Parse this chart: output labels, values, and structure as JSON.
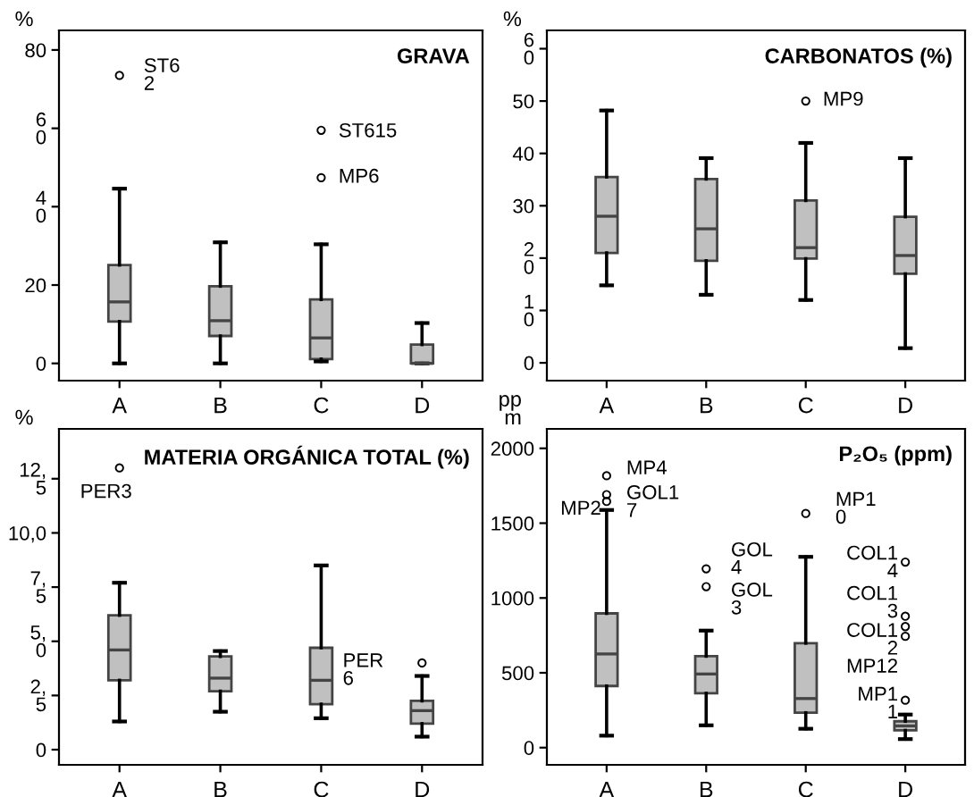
{
  "chart_data": [
    {
      "type": "box",
      "title": "GRAVA",
      "ylabel": "%",
      "categories": [
        "A",
        "B",
        "C",
        "D"
      ],
      "color": "#c0c0c0",
      "ylim": [
        -4.4,
        85
      ],
      "yticks": [
        {
          "value": 0,
          "label": "0"
        },
        {
          "value": 20,
          "label": "20"
        },
        {
          "value": 40,
          "label": "4\n0"
        },
        {
          "value": 60,
          "label": "6\n0"
        },
        {
          "value": 80,
          "label": "80"
        }
      ],
      "grid": false,
      "legend": false,
      "boxes": [
        {
          "low": 0,
          "q1": 10.7,
          "median": 15.7,
          "q3": 25.1,
          "high": 44.6,
          "outliers": [
            73.5
          ]
        },
        {
          "low": 0,
          "q1": 7.0,
          "median": 10.9,
          "q3": 19.7,
          "high": 30.9
        },
        {
          "low": 0.5,
          "q1": 1.1,
          "median": 6.5,
          "q3": 16.3,
          "high": 30.4,
          "outliers": [
            59.5,
            47.4
          ]
        },
        {
          "low": 0,
          "q1": 0,
          "median": 0,
          "q3": 4.8,
          "high": 10.3
        }
      ],
      "annotations": [
        "ST6\n2",
        "ST615",
        "MP6"
      ]
    },
    {
      "type": "box",
      "title": "CARBONATOS (%)",
      "ylabel": "%",
      "categories": [
        "A",
        "B",
        "C",
        "D"
      ],
      "color": "#c0c0c0",
      "ylim": [
        -3.4,
        63.5
      ],
      "yticks": [
        {
          "value": 0,
          "label": "0"
        },
        {
          "value": 10,
          "label": "1\n0"
        },
        {
          "value": 20,
          "label": "2\n0"
        },
        30,
        40,
        50,
        {
          "value": 60,
          "label": "6\n0"
        }
      ],
      "grid": false,
      "legend": false,
      "boxes": [
        {
          "low": 14.8,
          "q1": 21.0,
          "median": 28.0,
          "q3": 35.5,
          "high": 48.2
        },
        {
          "low": 13.0,
          "q1": 19.5,
          "median": 25.6,
          "q3": 35.1,
          "high": 39.1
        },
        {
          "low": 12.0,
          "q1": 19.9,
          "median": 22.0,
          "q3": 31.0,
          "high": 42.0,
          "outliers": [
            50.0
          ]
        },
        {
          "low": 2.8,
          "q1": 17.0,
          "median": 20.5,
          "q3": 27.9,
          "high": 39.1
        }
      ],
      "annotations": [
        "MP9"
      ]
    },
    {
      "type": "box",
      "title": "MATERIA ORGÁNICA TOTAL (%)",
      "ylabel": "%",
      "categories": [
        "A",
        "B",
        "C",
        "D"
      ],
      "color": "#c0c0c0",
      "ylim": [
        -0.7,
        14.8
      ],
      "yticks": [
        {
          "value": 0,
          "label": "0"
        },
        {
          "value": 2.5,
          "label": "2,\n5"
        },
        {
          "value": 5,
          "label": "5,\n0"
        },
        {
          "value": 7.5,
          "label": "7,\n5"
        },
        {
          "value": 10,
          "label": "10,0"
        },
        {
          "value": 12.5,
          "label": "12,\n5"
        }
      ],
      "grid": false,
      "legend": false,
      "boxes": [
        {
          "low": 1.3,
          "q1": 3.2,
          "median": 4.6,
          "q3": 6.2,
          "high": 7.7,
          "outliers": [
            13.0
          ]
        },
        {
          "low": 1.75,
          "q1": 2.7,
          "median": 3.3,
          "q3": 4.3,
          "high": 4.55
        },
        {
          "low": 1.45,
          "q1": 2.1,
          "median": 3.2,
          "q3": 4.7,
          "high": 8.5
        },
        {
          "low": 0.6,
          "q1": 1.2,
          "median": 1.8,
          "q3": 2.25,
          "high": 3.4,
          "outliers": [
            4.0
          ]
        }
      ],
      "annotations": [
        "PER3",
        "PER\n6"
      ]
    },
    {
      "type": "box",
      "title": "P₂O₅ (ppm)",
      "ylabel": "pp\nm",
      "categories": [
        "A",
        "B",
        "C",
        "D"
      ],
      "color": "#c0c0c0",
      "ylim": [
        -115,
        2130
      ],
      "yticks": [
        0,
        500,
        1000,
        1500,
        2000
      ],
      "grid": false,
      "legend": false,
      "boxes": [
        {
          "low": 80,
          "q1": 412,
          "median": 626,
          "q3": 897,
          "high": 1588,
          "outliers": [
            1817,
            1691,
            1645
          ]
        },
        {
          "low": 149,
          "q1": 363,
          "median": 492,
          "q3": 611,
          "high": 782,
          "outliers": [
            1195,
            1076
          ]
        },
        {
          "low": 126,
          "q1": 233,
          "median": 328,
          "q3": 698,
          "high": 1275,
          "outliers": [
            1565
          ]
        },
        {
          "low": 57,
          "q1": 115,
          "median": 145,
          "q3": 176,
          "high": 221,
          "outliers": [
            1240,
            878,
            809,
            744,
            317
          ]
        }
      ],
      "annotations": [
        "MP4",
        "GOL1\n7",
        "MP2",
        "GOL\n4",
        "GOL\n3",
        "MP1\n0",
        "COL1\n4",
        "COL1\n3",
        "COL1\n2",
        "MP12",
        "MP1\n1"
      ]
    }
  ]
}
